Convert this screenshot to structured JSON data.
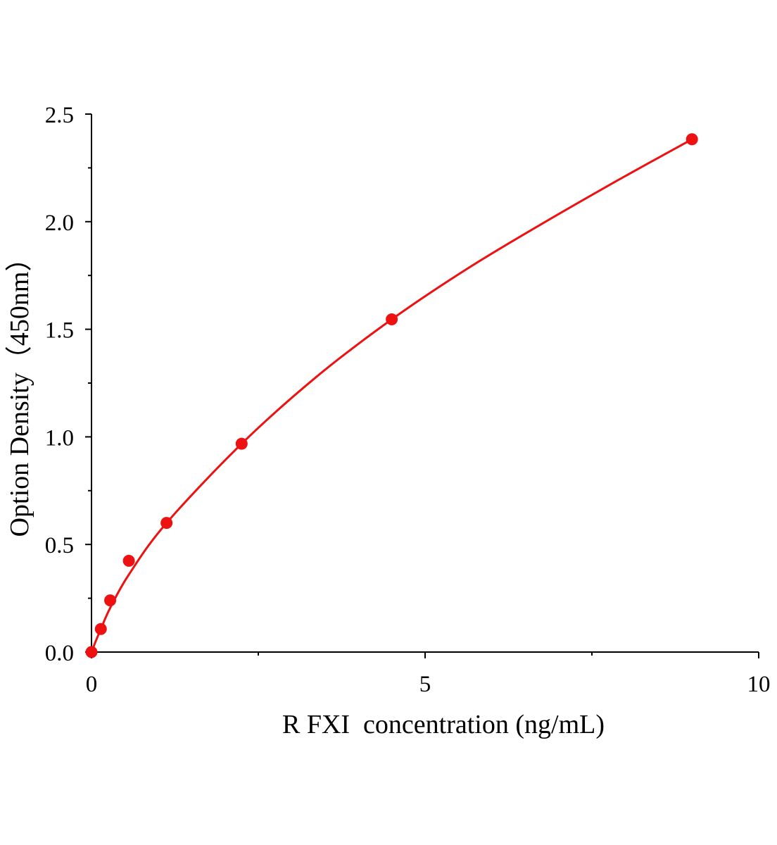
{
  "chart_data": {
    "type": "scatter",
    "title": "",
    "xlabel": "R FXI  concentration (ng/mL)",
    "ylabel": "Option Density（450nm）",
    "xlim": [
      0,
      10
    ],
    "ylim": [
      0,
      2.5
    ],
    "x_ticks": [
      "0",
      "5",
      "10"
    ],
    "y_ticks": [
      "0.0",
      "0.5",
      "1.0",
      "1.5",
      "2.0",
      "2.5"
    ],
    "x_minor_step": 2.5,
    "y_minor_step": 0.25,
    "grid": false,
    "legend": "none",
    "colors": {
      "series": "#ee1111",
      "axis": "#000000"
    },
    "series": [
      {
        "points": [
          {
            "x": 0,
            "y": 0.0
          },
          {
            "x": 0.14,
            "y": 0.107
          },
          {
            "x": 0.28,
            "y": 0.24
          },
          {
            "x": 0.56,
            "y": 0.424
          },
          {
            "x": 1.125,
            "y": 0.6
          },
          {
            "x": 2.25,
            "y": 0.968
          },
          {
            "x": 4.5,
            "y": 1.546
          },
          {
            "x": 9.0,
            "y": 2.383
          }
        ],
        "fit_curve": {
          "type": "smooth",
          "points": [
            {
              "x": 0,
              "y": 0.0
            },
            {
              "x": 0.07,
              "y": 0.055
            },
            {
              "x": 0.14,
              "y": 0.107
            },
            {
              "x": 0.28,
              "y": 0.205
            },
            {
              "x": 0.56,
              "y": 0.36
            },
            {
              "x": 1.125,
              "y": 0.6
            },
            {
              "x": 2.25,
              "y": 0.968
            },
            {
              "x": 3.375,
              "y": 1.28
            },
            {
              "x": 4.5,
              "y": 1.546
            },
            {
              "x": 5.625,
              "y": 1.78
            },
            {
              "x": 6.75,
              "y": 1.99
            },
            {
              "x": 7.875,
              "y": 2.19
            },
            {
              "x": 9.0,
              "y": 2.383
            }
          ]
        }
      }
    ]
  }
}
